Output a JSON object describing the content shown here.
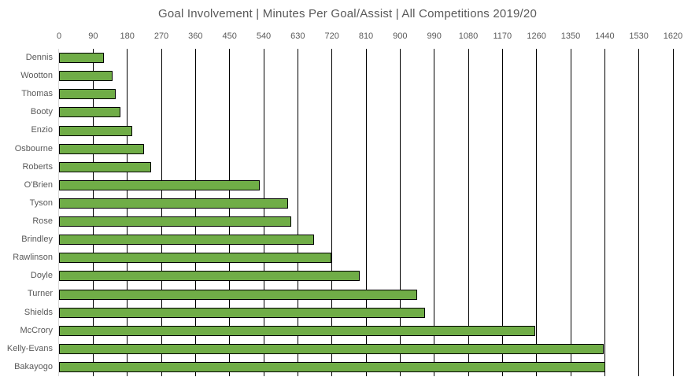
{
  "chart_data": {
    "type": "bar",
    "orientation": "horizontal",
    "title": "Goal Involvement | Minutes Per Goal/Assist | All Competitions 2019/20",
    "categories": [
      "Dennis",
      "Wootton",
      "Thomas",
      "Booty",
      "Enzio",
      "Osbourne",
      "Roberts",
      "O'Brien",
      "Tyson",
      "Rose",
      "Brindley",
      "Rawlinson",
      "Doyle",
      "Turner",
      "Shields",
      "McCrory",
      "Kelly-Evans",
      "Bakayogo"
    ],
    "values": [
      119,
      142,
      150,
      162,
      194,
      224,
      244,
      530,
      605,
      612,
      673,
      719,
      794,
      945,
      966,
      1256,
      1437,
      1442
    ],
    "xlabel": "",
    "ylabel": "",
    "xlim": [
      0,
      1620
    ],
    "x_ticks": [
      0,
      90,
      180,
      270,
      360,
      450,
      540,
      630,
      720,
      810,
      900,
      990,
      1080,
      1170,
      1260,
      1350,
      1440,
      1530,
      1620
    ],
    "grid": true,
    "legend": false,
    "colors": {
      "bar_fill": "#70AD47",
      "bar_border": "#000000",
      "gridline": "#000000",
      "axis_line": "#D9D9D9",
      "text": "#595959",
      "background": "#FFFFFF"
    }
  }
}
